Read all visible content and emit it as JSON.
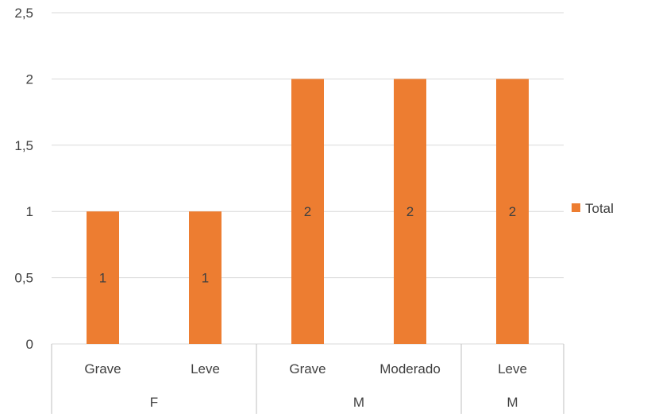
{
  "chart_data": {
    "type": "bar",
    "groups": [
      {
        "label": "F",
        "categories": [
          "Grave",
          "Leve"
        ]
      },
      {
        "label": "M",
        "categories": [
          "Grave",
          "Moderado"
        ]
      },
      {
        "label": "M",
        "categories": [
          "Leve"
        ]
      }
    ],
    "categories": [
      "Grave",
      "Leve",
      "Grave",
      "Moderado",
      "Leve"
    ],
    "series": [
      {
        "name": "Total",
        "values": [
          1,
          1,
          2,
          2,
          2
        ],
        "color": "#ed7d31"
      }
    ],
    "data_labels": [
      "1",
      "1",
      "2",
      "2",
      "2"
    ],
    "yticks": [
      "0",
      "0,5",
      "1",
      "1,5",
      "2",
      "2,5"
    ],
    "ylim": [
      0,
      2.5
    ],
    "grid": true,
    "legend_position": "right"
  }
}
